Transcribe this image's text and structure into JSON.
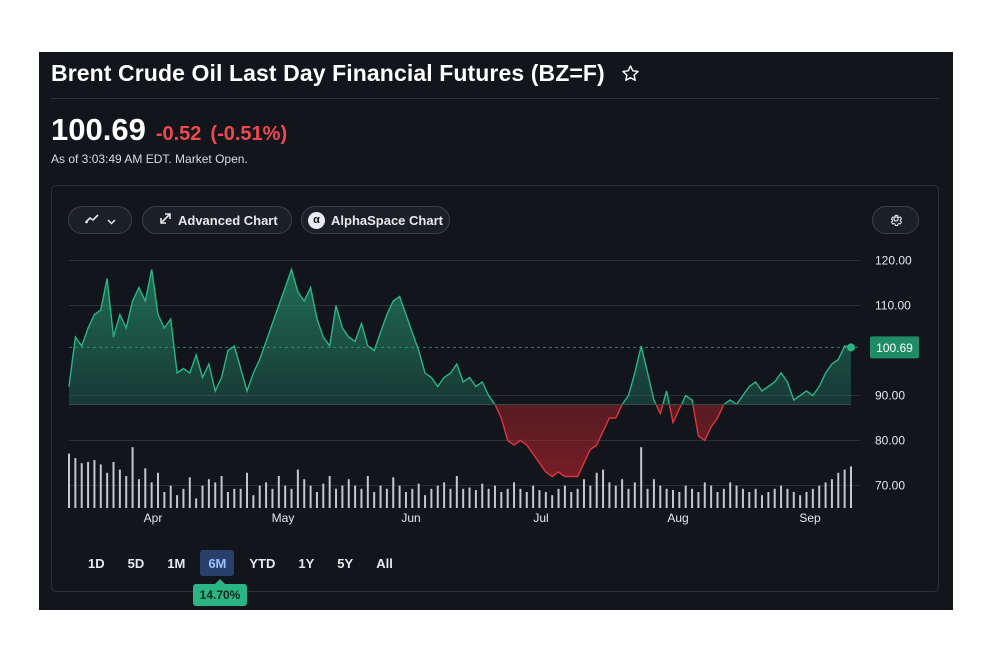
{
  "header": {
    "title": "Brent Crude Oil Last Day Financial Futures (BZ=F)",
    "star_icon": "star-outline-icon"
  },
  "quote": {
    "price": "100.69",
    "change": "-0.52",
    "change_percent": "(-0.51%)",
    "as_of": "As of 3:03:49 AM EDT. Market Open."
  },
  "toolbar": {
    "chart_type_icon": "line-chart-icon",
    "advanced_label": "Advanced Chart",
    "alphaspace_badge": "α",
    "alphaspace_label": "AlphaSpace Chart",
    "settings_icon": "gear-icon"
  },
  "colors": {
    "up": "#2bb484",
    "down": "#e0353d",
    "active_range": "#28406a"
  },
  "chart_data": {
    "type": "area",
    "baseline": 88.0,
    "ylim": [
      65,
      125
    ],
    "yticks": [
      "120.00",
      "110.00",
      "90.00",
      "80.00",
      "70.00"
    ],
    "ytick_values": [
      120,
      110,
      90,
      80,
      70
    ],
    "xticks": [
      "Apr",
      "May",
      "Jun",
      "Jul",
      "Aug",
      "Sep"
    ],
    "last_price_label": "100.69",
    "last_price": 100.69,
    "prices": [
      92,
      103,
      101,
      105,
      108,
      109,
      116,
      103,
      108,
      105,
      111,
      114,
      111,
      118,
      108,
      105,
      107,
      95,
      96,
      95,
      99,
      94,
      97,
      91,
      94,
      100,
      101,
      96,
      91,
      95,
      98,
      102,
      106,
      110,
      114,
      118,
      113,
      111,
      114,
      107,
      103,
      101,
      110,
      105,
      103,
      102,
      106,
      101,
      100,
      104,
      108,
      111,
      112,
      108,
      104,
      100,
      95,
      94,
      92,
      94,
      95,
      97,
      93,
      94,
      92,
      93,
      90,
      88,
      85,
      80,
      79,
      80,
      79,
      77,
      75,
      73,
      72,
      73,
      72,
      72,
      72,
      75,
      78,
      79,
      82,
      85,
      85,
      88,
      90,
      95,
      101,
      95,
      89,
      86,
      91,
      84,
      87,
      90,
      89,
      81,
      80,
      83,
      85,
      88,
      89,
      88,
      90,
      92,
      93,
      91,
      92,
      93,
      95,
      93,
      89,
      90,
      91,
      90,
      92,
      95,
      97,
      98,
      101,
      100.69
    ],
    "volume": [
      0.85,
      0.78,
      0.7,
      0.72,
      0.75,
      0.68,
      0.55,
      0.72,
      0.6,
      0.5,
      0.95,
      0.45,
      0.62,
      0.4,
      0.55,
      0.25,
      0.35,
      0.2,
      0.3,
      0.48,
      0.15,
      0.35,
      0.45,
      0.4,
      0.5,
      0.25,
      0.3,
      0.3,
      0.55,
      0.2,
      0.35,
      0.4,
      0.3,
      0.5,
      0.35,
      0.3,
      0.6,
      0.45,
      0.35,
      0.25,
      0.38,
      0.5,
      0.3,
      0.35,
      0.45,
      0.35,
      0.3,
      0.5,
      0.25,
      0.35,
      0.3,
      0.48,
      0.35,
      0.25,
      0.3,
      0.38,
      0.2,
      0.3,
      0.35,
      0.4,
      0.3,
      0.5,
      0.3,
      0.32,
      0.28,
      0.38,
      0.3,
      0.35,
      0.25,
      0.3,
      0.4,
      0.3,
      0.25,
      0.35,
      0.28,
      0.25,
      0.2,
      0.3,
      0.35,
      0.25,
      0.3,
      0.45,
      0.35,
      0.55,
      0.6,
      0.4,
      0.35,
      0.45,
      0.3,
      0.4,
      0.95,
      0.3,
      0.45,
      0.35,
      0.3,
      0.28,
      0.25,
      0.35,
      0.3,
      0.25,
      0.4,
      0.35,
      0.25,
      0.3,
      0.4,
      0.35,
      0.3,
      0.25,
      0.3,
      0.2,
      0.25,
      0.3,
      0.35,
      0.3,
      0.25,
      0.2,
      0.25,
      0.3,
      0.35,
      0.4,
      0.45,
      0.55,
      0.6,
      0.65
    ]
  },
  "ranges": [
    "1D",
    "5D",
    "1M",
    "6M",
    "YTD",
    "1Y",
    "5Y",
    "All"
  ],
  "active_range": "6M",
  "performance": "14.70%"
}
